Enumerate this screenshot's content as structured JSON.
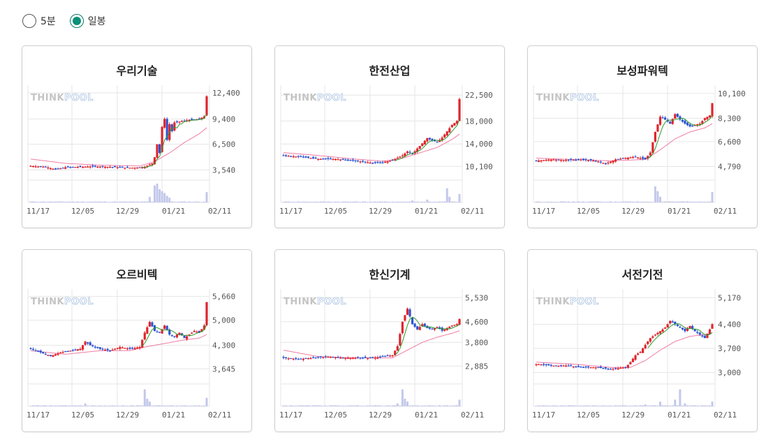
{
  "controls": {
    "options": [
      {
        "label": "5분",
        "selected": false
      },
      {
        "label": "일봉",
        "selected": true
      }
    ]
  },
  "colors": {
    "up": "#e0242c",
    "down": "#2d55d0",
    "ma5": "#2e9a2e",
    "ma20": "#f07ba3",
    "volume": "#c3c8ea",
    "grid": "#e6e6e6",
    "watermark_gray": "#c4c4c4",
    "watermark_blue": "#8eaed8"
  },
  "watermark": {
    "part1": "THINK",
    "part2": "POOL"
  },
  "cards": [
    {
      "title": "우리기술",
      "yticks": [
        "12,400",
        "9,400",
        "6,500",
        "3,540"
      ],
      "xticks": [
        "11/17",
        "12/05",
        "12/29",
        "01/21",
        "02/11"
      ],
      "chart_data": {
        "type": "candlestick",
        "x_dates": [
          "11/17",
          "12/05",
          "12/29",
          "01/21",
          "02/11"
        ],
        "y_ticks": [
          12400,
          9400,
          6500,
          3540
        ],
        "ylim": [
          2700,
          12800
        ],
        "close_path": [
          [
            0,
            4000
          ],
          [
            6,
            3900
          ],
          [
            10,
            3600
          ],
          [
            14,
            3850
          ],
          [
            20,
            3900
          ],
          [
            26,
            3950
          ],
          [
            32,
            3900
          ],
          [
            38,
            3800
          ],
          [
            42,
            3800
          ],
          [
            46,
            3900
          ],
          [
            49,
            4300
          ],
          [
            50,
            5000
          ],
          [
            51,
            6500
          ],
          [
            52,
            5500
          ],
          [
            53,
            8500
          ],
          [
            54,
            9400
          ],
          [
            55,
            7000
          ],
          [
            56,
            8800
          ],
          [
            57,
            8000
          ],
          [
            58,
            9000
          ],
          [
            60,
            9100
          ],
          [
            62,
            9200
          ],
          [
            64,
            9300
          ],
          [
            66,
            9300
          ],
          [
            68,
            9400
          ],
          [
            70,
            9700
          ],
          [
            71,
            12000
          ]
        ],
        "ma20_path": [
          [
            0,
            4800
          ],
          [
            14,
            4300
          ],
          [
            28,
            4100
          ],
          [
            44,
            4000
          ],
          [
            50,
            4500
          ],
          [
            56,
            5500
          ],
          [
            62,
            6700
          ],
          [
            68,
            7700
          ],
          [
            71,
            8400
          ]
        ],
        "volume_spikes": [
          [
            48,
            0.3
          ],
          [
            50,
            0.9
          ],
          [
            51,
            1.0
          ],
          [
            52,
            0.7
          ],
          [
            53,
            0.6
          ],
          [
            54,
            0.5
          ],
          [
            55,
            0.35
          ],
          [
            56,
            0.25
          ],
          [
            71,
            0.55
          ]
        ]
      }
    },
    {
      "title": "한전산업",
      "yticks": [
        "22,500",
        "18,000",
        "14,000",
        "10,100"
      ],
      "xticks": [
        "11/17",
        "12/05",
        "12/29",
        "01/21",
        "02/11"
      ],
      "chart_data": {
        "type": "candlestick",
        "x_dates": [
          "11/17",
          "12/05",
          "12/29",
          "01/21",
          "02/11"
        ],
        "y_ticks": [
          22500,
          18000,
          14000,
          10100
        ],
        "ylim": [
          8200,
          23500
        ],
        "close_path": [
          [
            0,
            12000
          ],
          [
            8,
            11700
          ],
          [
            14,
            11400
          ],
          [
            20,
            11400
          ],
          [
            26,
            11200
          ],
          [
            32,
            10900
          ],
          [
            36,
            10700
          ],
          [
            40,
            10800
          ],
          [
            44,
            11200
          ],
          [
            48,
            12000
          ],
          [
            50,
            12700
          ],
          [
            52,
            12300
          ],
          [
            54,
            13200
          ],
          [
            58,
            15000
          ],
          [
            60,
            14600
          ],
          [
            62,
            14300
          ],
          [
            64,
            15100
          ],
          [
            66,
            16200
          ],
          [
            68,
            17300
          ],
          [
            70,
            18000
          ],
          [
            71,
            21800
          ]
        ],
        "ma20_path": [
          [
            0,
            12500
          ],
          [
            14,
            12000
          ],
          [
            28,
            11400
          ],
          [
            40,
            11000
          ],
          [
            48,
            11500
          ],
          [
            56,
            12600
          ],
          [
            62,
            13400
          ],
          [
            68,
            14800
          ],
          [
            71,
            15700
          ]
        ],
        "volume_spikes": [
          [
            52,
            0.1
          ],
          [
            58,
            0.15
          ],
          [
            66,
            0.75
          ],
          [
            67,
            0.3
          ],
          [
            71,
            0.45
          ]
        ]
      }
    },
    {
      "title": "보성파워텍",
      "yticks": [
        "10,100",
        "8,300",
        "6,600",
        "4,790"
      ],
      "xticks": [
        "11/17",
        "12/05",
        "12/29",
        "01/21",
        "02/11"
      ],
      "chart_data": {
        "type": "candlestick",
        "x_dates": [
          "11/17",
          "12/05",
          "12/29",
          "01/21",
          "02/11"
        ],
        "y_ticks": [
          10100,
          8300,
          6600,
          4790
        ],
        "ylim": [
          4000,
          10400
        ],
        "close_path": [
          [
            0,
            5200
          ],
          [
            6,
            5300
          ],
          [
            12,
            5250
          ],
          [
            18,
            5300
          ],
          [
            24,
            5200
          ],
          [
            28,
            5000
          ],
          [
            32,
            5300
          ],
          [
            36,
            5400
          ],
          [
            40,
            5500
          ],
          [
            44,
            5300
          ],
          [
            46,
            5800
          ],
          [
            48,
            7300
          ],
          [
            50,
            8400
          ],
          [
            52,
            8200
          ],
          [
            54,
            7900
          ],
          [
            56,
            8600
          ],
          [
            58,
            8200
          ],
          [
            60,
            7900
          ],
          [
            62,
            7700
          ],
          [
            64,
            7800
          ],
          [
            66,
            7900
          ],
          [
            68,
            8300
          ],
          [
            70,
            8500
          ],
          [
            71,
            9400
          ]
        ],
        "ma20_path": [
          [
            0,
            5400
          ],
          [
            14,
            5300
          ],
          [
            30,
            5200
          ],
          [
            44,
            5300
          ],
          [
            50,
            6000
          ],
          [
            56,
            6800
          ],
          [
            62,
            7300
          ],
          [
            68,
            7600
          ],
          [
            71,
            7900
          ]
        ],
        "volume_spikes": [
          [
            48,
            0.85
          ],
          [
            49,
            0.6
          ],
          [
            50,
            0.3
          ],
          [
            71,
            0.55
          ]
        ]
      }
    },
    {
      "title": "오르비텍",
      "yticks": [
        "5,660",
        "5,000",
        "4,300",
        "3,645"
      ],
      "xticks": [
        "11/17",
        "12/05",
        "12/29",
        "01/21",
        "02/11"
      ],
      "chart_data": {
        "type": "candlestick",
        "x_dates": [
          "11/17",
          "12/05",
          "12/29",
          "01/21",
          "02/11"
        ],
        "y_ticks": [
          5660,
          5000,
          4300,
          3645
        ],
        "ylim": [
          3300,
          5750
        ],
        "close_path": [
          [
            0,
            4200
          ],
          [
            4,
            4100
          ],
          [
            8,
            4000
          ],
          [
            12,
            4100
          ],
          [
            16,
            4150
          ],
          [
            20,
            4200
          ],
          [
            22,
            4400
          ],
          [
            24,
            4300
          ],
          [
            28,
            4200
          ],
          [
            32,
            4150
          ],
          [
            36,
            4250
          ],
          [
            40,
            4200
          ],
          [
            44,
            4250
          ],
          [
            46,
            4650
          ],
          [
            48,
            4950
          ],
          [
            50,
            4700
          ],
          [
            52,
            4650
          ],
          [
            54,
            4850
          ],
          [
            56,
            4600
          ],
          [
            58,
            4550
          ],
          [
            60,
            4650
          ],
          [
            62,
            4500
          ],
          [
            64,
            4600
          ],
          [
            66,
            4700
          ],
          [
            68,
            4650
          ],
          [
            70,
            4850
          ],
          [
            71,
            5500
          ]
        ],
        "ma20_path": [
          [
            0,
            4150
          ],
          [
            14,
            4050
          ],
          [
            28,
            4150
          ],
          [
            40,
            4150
          ],
          [
            46,
            4250
          ],
          [
            54,
            4350
          ],
          [
            62,
            4450
          ],
          [
            68,
            4500
          ],
          [
            71,
            4600
          ]
        ],
        "volume_spikes": [
          [
            22,
            0.15
          ],
          [
            46,
            0.9
          ],
          [
            47,
            0.4
          ],
          [
            48,
            0.25
          ],
          [
            71,
            0.45
          ]
        ]
      }
    },
    {
      "title": "한신기계",
      "yticks": [
        "5,530",
        "4,600",
        "3,800",
        "2,885"
      ],
      "xticks": [
        "11/17",
        "12/05",
        "12/29",
        "01/21",
        "02/11"
      ],
      "chart_data": {
        "type": "candlestick",
        "x_dates": [
          "11/17",
          "12/05",
          "12/29",
          "01/21",
          "02/11"
        ],
        "y_ticks": [
          5530,
          4600,
          3800,
          2885
        ],
        "ylim": [
          2300,
          5700
        ],
        "close_path": [
          [
            0,
            3200
          ],
          [
            6,
            3150
          ],
          [
            12,
            3200
          ],
          [
            18,
            3250
          ],
          [
            24,
            3200
          ],
          [
            30,
            3200
          ],
          [
            36,
            3200
          ],
          [
            40,
            3250
          ],
          [
            44,
            3300
          ],
          [
            46,
            3650
          ],
          [
            48,
            4600
          ],
          [
            50,
            5100
          ],
          [
            52,
            4500
          ],
          [
            54,
            4300
          ],
          [
            56,
            4500
          ],
          [
            58,
            4350
          ],
          [
            60,
            4300
          ],
          [
            62,
            4400
          ],
          [
            64,
            4250
          ],
          [
            66,
            4350
          ],
          [
            68,
            4450
          ],
          [
            70,
            4500
          ],
          [
            71,
            4700
          ]
        ],
        "ma20_path": [
          [
            0,
            3500
          ],
          [
            14,
            3250
          ],
          [
            30,
            3200
          ],
          [
            44,
            3200
          ],
          [
            50,
            3500
          ],
          [
            56,
            3800
          ],
          [
            62,
            4000
          ],
          [
            68,
            4150
          ],
          [
            71,
            4250
          ]
        ],
        "volume_spikes": [
          [
            46,
            0.15
          ],
          [
            48,
            0.9
          ],
          [
            49,
            0.4
          ],
          [
            50,
            0.25
          ],
          [
            71,
            0.35
          ]
        ]
      }
    },
    {
      "title": "서전기전",
      "yticks": [
        "5,170",
        "4,400",
        "3,700",
        "3,000"
      ],
      "xticks": [
        "11/17",
        "12/05",
        "12/29",
        "01/21",
        "02/11"
      ],
      "chart_data": {
        "type": "candlestick",
        "x_dates": [
          "11/17",
          "12/05",
          "12/29",
          "01/21",
          "02/11"
        ],
        "y_ticks": [
          5170,
          4400,
          3700,
          3000
        ],
        "ylim": [
          2750,
          5300
        ],
        "close_path": [
          [
            0,
            3250
          ],
          [
            6,
            3200
          ],
          [
            12,
            3200
          ],
          [
            18,
            3150
          ],
          [
            24,
            3150
          ],
          [
            30,
            3100
          ],
          [
            36,
            3150
          ],
          [
            38,
            3300
          ],
          [
            40,
            3500
          ],
          [
            42,
            3600
          ],
          [
            44,
            3800
          ],
          [
            46,
            4000
          ],
          [
            48,
            4100
          ],
          [
            50,
            4200
          ],
          [
            52,
            4300
          ],
          [
            54,
            4500
          ],
          [
            56,
            4400
          ],
          [
            58,
            4300
          ],
          [
            60,
            4200
          ],
          [
            62,
            4350
          ],
          [
            64,
            4200
          ],
          [
            66,
            4100
          ],
          [
            68,
            4000
          ],
          [
            70,
            4250
          ],
          [
            71,
            4400
          ]
        ],
        "ma20_path": [
          [
            0,
            3300
          ],
          [
            14,
            3250
          ],
          [
            30,
            3150
          ],
          [
            38,
            3150
          ],
          [
            44,
            3350
          ],
          [
            50,
            3650
          ],
          [
            56,
            3900
          ],
          [
            62,
            4050
          ],
          [
            68,
            4100
          ],
          [
            71,
            4150
          ]
        ],
        "volume_spikes": [
          [
            44,
            0.1
          ],
          [
            50,
            0.25
          ],
          [
            56,
            0.35
          ],
          [
            58,
            0.9
          ],
          [
            60,
            0.15
          ],
          [
            71,
            0.25
          ]
        ]
      }
    }
  ]
}
